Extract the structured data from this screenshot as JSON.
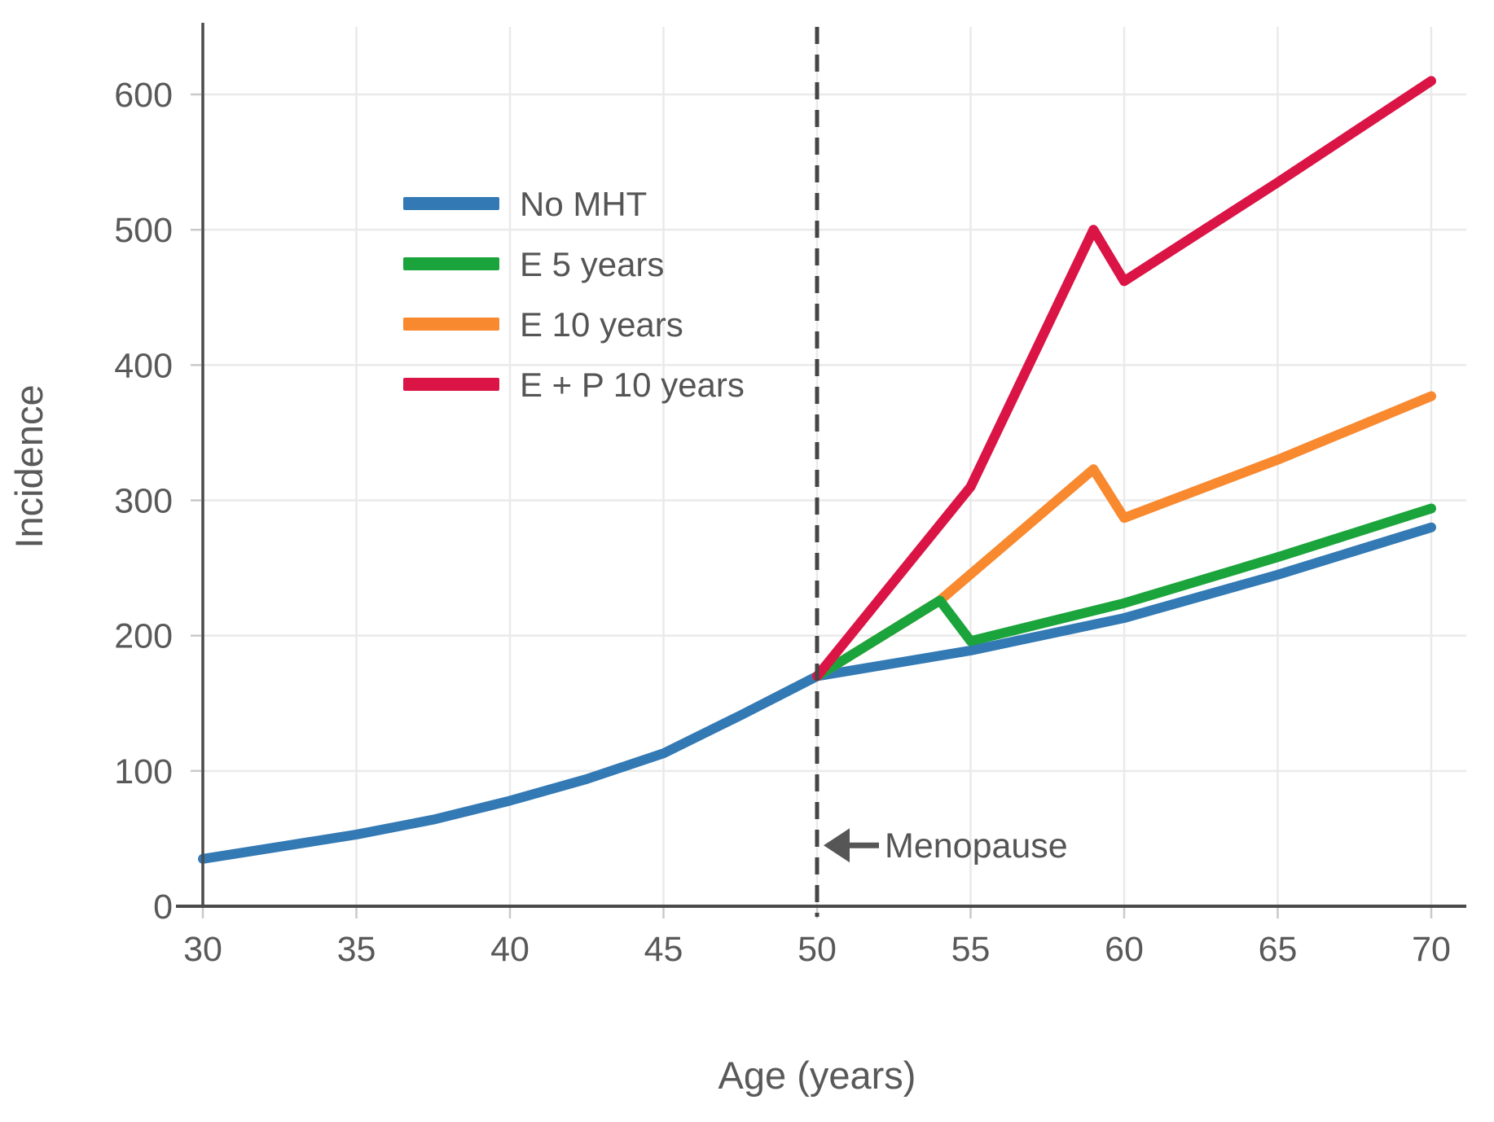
{
  "chart_data": {
    "type": "line",
    "title": "",
    "xlabel": "Age (years)",
    "ylabel": "Incidence",
    "xlim": [
      30,
      70
    ],
    "ylim": [
      0,
      650
    ],
    "xticks": [
      30,
      35,
      40,
      45,
      50,
      55,
      60,
      65,
      70
    ],
    "yticks": [
      0,
      100,
      200,
      300,
      400,
      500,
      600
    ],
    "grid": true,
    "legend_position": "upper-left-inside",
    "series": [
      {
        "name": "No MHT",
        "color": "#3379B4",
        "points": [
          [
            30,
            35
          ],
          [
            32.5,
            44
          ],
          [
            35,
            53
          ],
          [
            37.5,
            64
          ],
          [
            40,
            78
          ],
          [
            42.5,
            94
          ],
          [
            45,
            113
          ],
          [
            47.5,
            141
          ],
          [
            50,
            170
          ],
          [
            55,
            189
          ],
          [
            60,
            213
          ],
          [
            65,
            245
          ],
          [
            70,
            280
          ]
        ]
      },
      {
        "name": "E 10 years",
        "color": "#F8892F",
        "points": [
          [
            50,
            170
          ],
          [
            54,
            226
          ],
          [
            59,
            323
          ],
          [
            60,
            287
          ],
          [
            65,
            330
          ],
          [
            70,
            377
          ]
        ]
      },
      {
        "name": "E 5 years",
        "color": "#1BA43B",
        "points": [
          [
            50,
            170
          ],
          [
            54,
            226
          ],
          [
            55,
            196
          ],
          [
            60,
            224
          ],
          [
            65,
            258
          ],
          [
            70,
            294
          ]
        ]
      },
      {
        "name": "E + P 10 years",
        "color": "#DB1446",
        "points": [
          [
            50,
            170
          ],
          [
            55,
            310
          ],
          [
            59,
            500
          ],
          [
            60,
            462
          ],
          [
            65,
            535
          ],
          [
            70,
            610
          ]
        ]
      }
    ],
    "legend_order": [
      "No MHT",
      "E 5 years",
      "E 10 years",
      "E + P 10 years"
    ],
    "vline": {
      "x": 50,
      "style": "dashed",
      "color": "#454545"
    },
    "annotation": {
      "text": "Menopause",
      "x": 50,
      "y": 45,
      "arrow": "left"
    }
  },
  "style_colors": {
    "axis": "#4A4A4A",
    "grid": "#EAEAEA",
    "tick": "#C9C9C9",
    "label": "#595959"
  }
}
